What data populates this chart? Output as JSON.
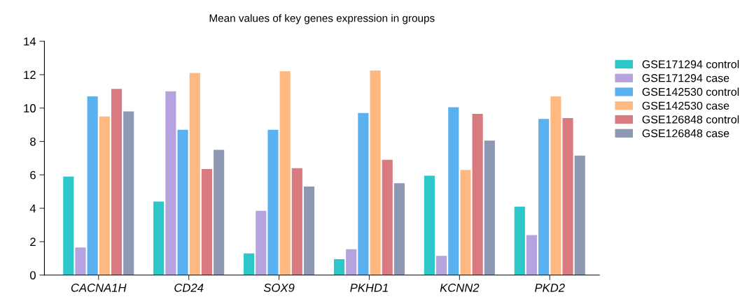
{
  "chart_data": {
    "type": "bar",
    "title": "Mean values of key genes expression in groups",
    "categories": [
      "CACNA1H",
      "CD24",
      "SOX9",
      "PKHD1",
      "KCNN2",
      "PKD2"
    ],
    "series": [
      {
        "name": "GSE171294 control",
        "color": "#2ec7c9",
        "values": [
          5.9,
          4.4,
          1.3,
          0.95,
          5.95,
          4.1
        ]
      },
      {
        "name": "GSE171294 case",
        "color": "#b6a2de",
        "values": [
          1.65,
          11.0,
          3.85,
          1.55,
          1.15,
          2.4
        ]
      },
      {
        "name": "GSE142530 control",
        "color": "#5ab1ef",
        "values": [
          10.7,
          8.7,
          8.7,
          9.7,
          10.05,
          9.35
        ]
      },
      {
        "name": "GSE142530 case",
        "color": "#ffb980",
        "values": [
          9.5,
          12.1,
          12.2,
          12.25,
          6.3,
          10.7
        ]
      },
      {
        "name": "GSE126848 control",
        "color": "#d87a80",
        "values": [
          11.15,
          6.35,
          6.4,
          6.9,
          9.65,
          9.4
        ]
      },
      {
        "name": "GSE126848 case",
        "color": "#8d98b3",
        "values": [
          9.8,
          7.5,
          5.3,
          5.5,
          8.05,
          7.15
        ]
      }
    ],
    "ylim": [
      0,
      14
    ],
    "yticks": [
      0,
      2,
      4,
      6,
      8,
      10,
      12,
      14
    ],
    "grid": false,
    "legend": "right"
  }
}
